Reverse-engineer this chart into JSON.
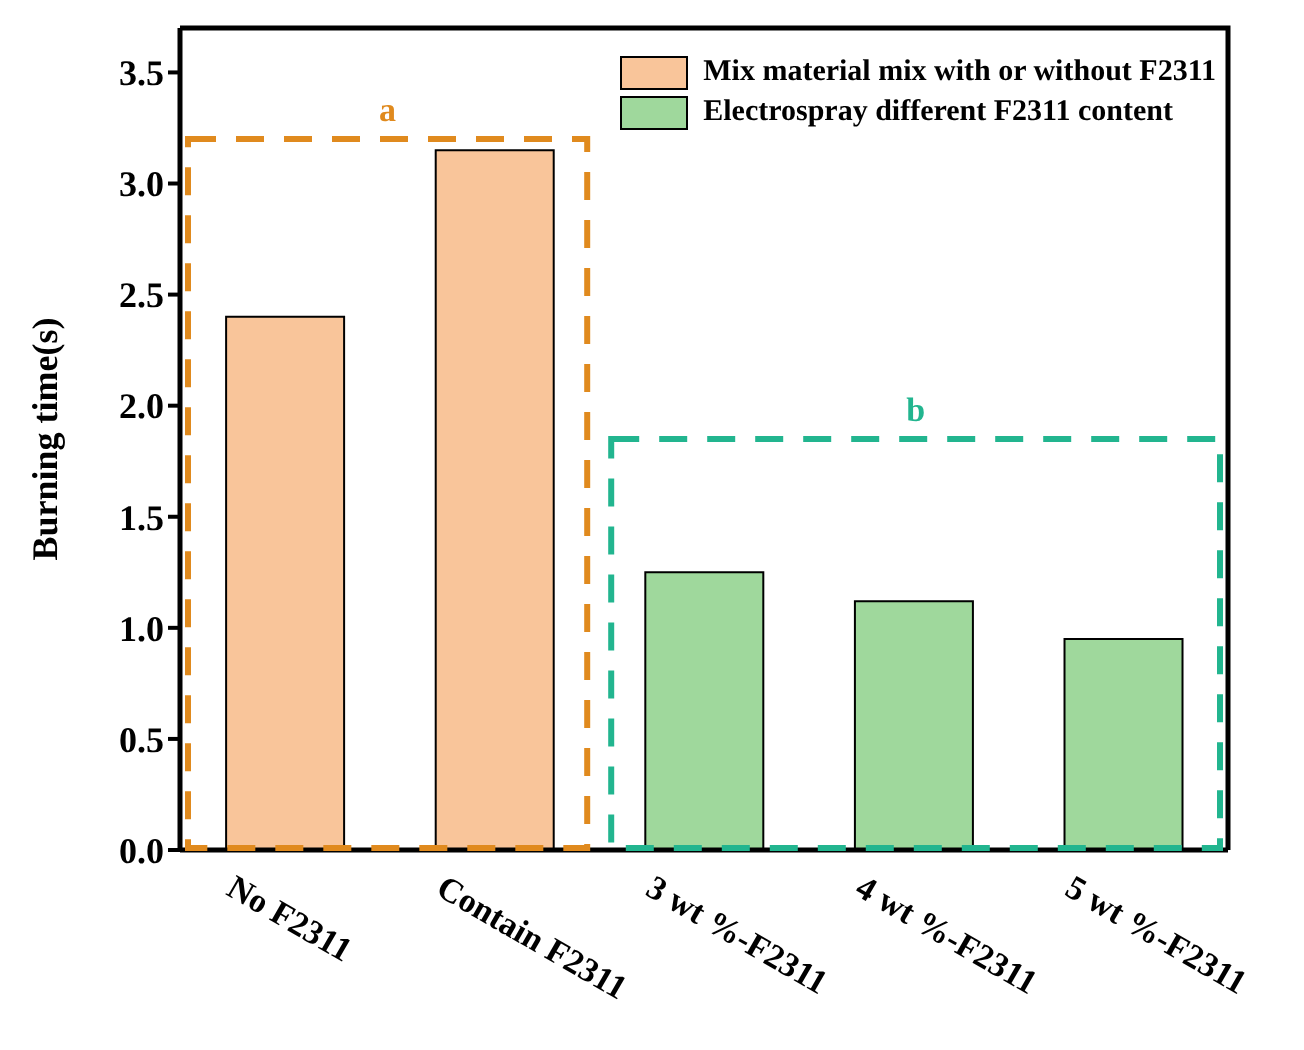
{
  "chart_data": {
    "type": "bar",
    "ylabel": "Burning time(s)",
    "categories": [
      "No  F2311",
      "Contain F2311",
      "3 wt %-F2311",
      "4 wt %-F2311",
      "5 wt %-F2311"
    ],
    "series": [
      {
        "name": "Mix material mix with or without F2311",
        "color": "#f9c59a",
        "values": [
          2.4,
          3.15,
          null,
          null,
          null
        ]
      },
      {
        "name": "Electrospray different F2311 content",
        "color": "#9fd89c",
        "values": [
          null,
          null,
          1.25,
          1.12,
          0.95
        ]
      }
    ],
    "ylim": [
      0,
      3.7
    ],
    "yticks": [
      {
        "value": 0,
        "label": "0.0"
      },
      0.5,
      {
        "value": 1,
        "label": "1.0"
      },
      1.5,
      {
        "value": 2,
        "label": "2.0"
      },
      2.5,
      {
        "value": 3,
        "label": "3.0"
      },
      3.5
    ],
    "annotations": [
      "a",
      "b"
    ],
    "legend": "top right",
    "grid": false
  }
}
